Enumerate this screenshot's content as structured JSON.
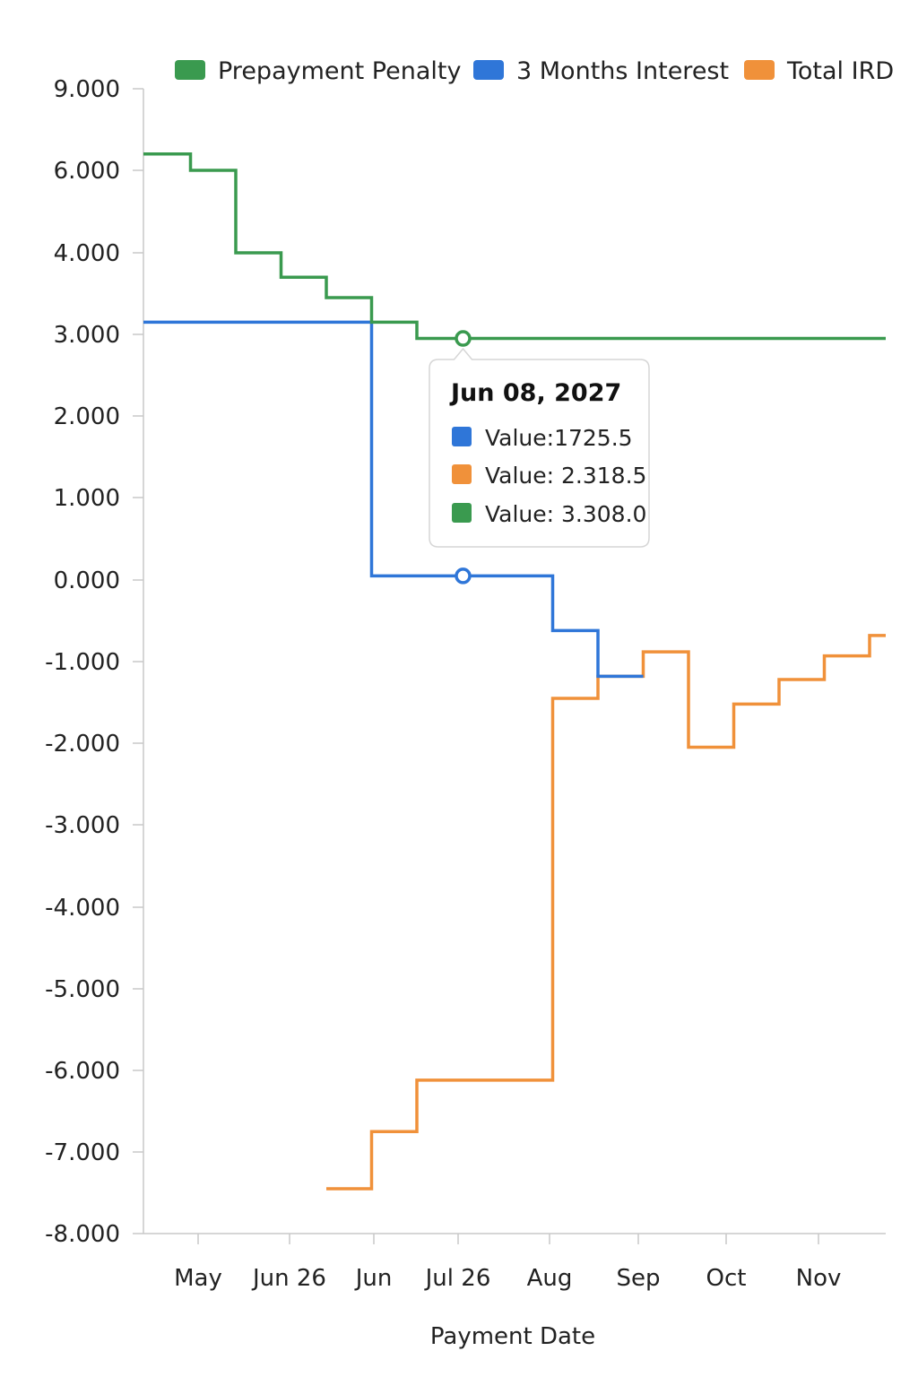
{
  "chart_data": {
    "type": "line",
    "step": true,
    "xlabel": "Payment Date",
    "ylabel": "",
    "y_ticks": [
      "9.000",
      "6.000",
      "4.000",
      "3.000",
      "2.000",
      "1.000",
      "0.000",
      "-1.000",
      "-2.000",
      "-3.000",
      "-4.000",
      "-5.000",
      "-6.000",
      "-7.000",
      "-8.000"
    ],
    "x_ticks": [
      "May",
      "Jun 26",
      "Jun",
      "Jul 26",
      "Aug",
      "Sep",
      "Oct",
      "Nov"
    ],
    "legend_position": "top",
    "series": [
      {
        "name": "Prepayment Penalty",
        "color": "#3a9a4f",
        "x": [
          0,
          1,
          2,
          3,
          4,
          5,
          6,
          7,
          8,
          9,
          10,
          11,
          12,
          13,
          14,
          15,
          16
        ],
        "values": [
          6.6,
          6.0,
          4.0,
          3.7,
          3.45,
          3.15,
          2.95,
          2.95,
          2.95,
          2.95,
          2.95,
          2.95,
          2.95,
          2.95,
          2.95,
          2.95,
          2.95
        ]
      },
      {
        "name": "3 Months Interest",
        "color": "#2f76d8",
        "x": [
          0,
          1,
          2,
          3,
          4,
          5,
          6,
          7,
          8,
          9,
          10
        ],
        "values": [
          3.15,
          3.15,
          3.15,
          3.15,
          3.15,
          0.05,
          0.05,
          0.05,
          0.05,
          -0.62,
          -1.18
        ]
      },
      {
        "name": "Total IRD",
        "color": "#f0913a",
        "x": [
          4,
          5,
          6,
          7,
          8,
          9,
          10,
          11,
          12,
          13,
          14,
          15,
          16
        ],
        "values": [
          -7.45,
          -6.75,
          -6.12,
          -6.12,
          -6.12,
          -1.45,
          -1.18,
          -0.88,
          -2.05,
          -1.52,
          -1.22,
          -0.93,
          -0.68
        ]
      }
    ],
    "tooltip": {
      "title": "Jun 08, 2027",
      "rows": [
        {
          "label": "Value:1725.5",
          "color": "#2f76d8"
        },
        {
          "label": "Value: 2.318.5",
          "color": "#f0913a"
        },
        {
          "label": "Value: 3.308.0",
          "color": "#3a9a4f"
        }
      ],
      "x": 7
    }
  }
}
